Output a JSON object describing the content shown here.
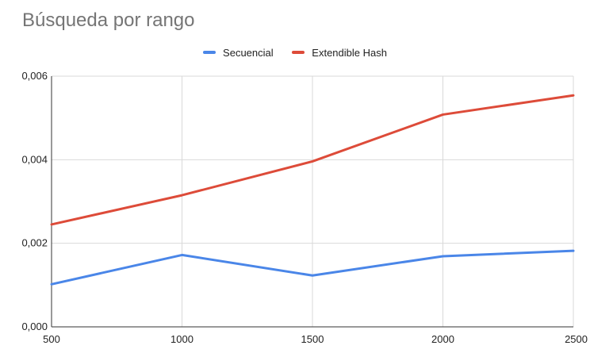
{
  "chart_data": {
    "type": "line",
    "title": "Búsqueda por rango",
    "xlabel": "",
    "ylabel": "",
    "x": [
      500,
      1000,
      1500,
      2000,
      2500
    ],
    "xlim": [
      500,
      2500
    ],
    "ylim": [
      0,
      0.006
    ],
    "x_tick_labels": [
      "500",
      "1000",
      "1500",
      "2000",
      "2500"
    ],
    "y_ticks": [
      0,
      0.002,
      0.004,
      0.006
    ],
    "y_tick_labels": [
      "0,000",
      "0,002",
      "0,004",
      "0,006"
    ],
    "grid": true,
    "legend_position": "top",
    "series": [
      {
        "name": "Secuencial",
        "color": "#4a86e8",
        "values": [
          0.00102,
          0.00172,
          0.00123,
          0.00169,
          0.00182
        ]
      },
      {
        "name": "Extendible Hash",
        "color": "#dd4b39",
        "values": [
          0.00245,
          0.00315,
          0.00396,
          0.00508,
          0.00554
        ]
      }
    ]
  }
}
